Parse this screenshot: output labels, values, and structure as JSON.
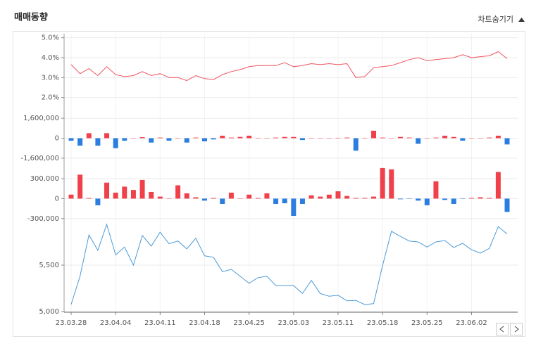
{
  "header": {
    "title": "매매동향",
    "toggle": "차트숨기기"
  },
  "chart_data": [
    {
      "type": "line",
      "color": "#f0535d",
      "grid": true,
      "ylim": [
        1.6,
        5.2
      ],
      "yticks": [
        {
          "value": 5,
          "label": "5.0%"
        },
        {
          "value": 4,
          "label": "4.0%"
        },
        {
          "value": 3,
          "label": "3.0%"
        },
        {
          "value": 2,
          "label": "2.0%"
        }
      ],
      "values": [
        3.65,
        3.2,
        3.45,
        3.1,
        3.55,
        3.15,
        3.05,
        3.1,
        3.3,
        3.1,
        3.2,
        3.0,
        3.0,
        2.85,
        3.1,
        2.95,
        2.9,
        3.15,
        3.3,
        3.4,
        3.55,
        3.6,
        3.6,
        3.6,
        3.75,
        3.55,
        3.6,
        3.7,
        3.65,
        3.7,
        3.65,
        3.7,
        3.0,
        3.05,
        3.5,
        3.55,
        3.6,
        3.75,
        3.9,
        4.0,
        3.85,
        3.9,
        3.95,
        4.0,
        4.15,
        4.0,
        4.05,
        4.1,
        4.3,
        3.95
      ]
    },
    {
      "type": "bar",
      "positive_color": "#f0414b",
      "negative_color": "#2b7de0",
      "grid": true,
      "ylim": [
        -2000000,
        2000000
      ],
      "yticks": [
        {
          "value": 1600000,
          "label": "1,600,000"
        },
        0,
        {
          "value": -1600000,
          "label": "-1,600,000"
        }
      ],
      "values": [
        -200000,
        -600000,
        400000,
        -600000,
        400000,
        -800000,
        -200000,
        20000,
        80000,
        -350000,
        50000,
        -200000,
        20000,
        -350000,
        50000,
        -250000,
        -100000,
        200000,
        50000,
        100000,
        200000,
        30000,
        20000,
        50000,
        100000,
        100000,
        -150000,
        20000,
        20000,
        10000,
        30000,
        50000,
        -1000000,
        30000,
        600000,
        50000,
        20000,
        100000,
        50000,
        -450000,
        20000,
        50000,
        200000,
        100000,
        -200000,
        20000,
        20000,
        50000,
        200000,
        -500000
      ]
    },
    {
      "type": "bar",
      "positive_color": "#f0414b",
      "negative_color": "#2b7de0",
      "grid": true,
      "ylim": [
        -450000,
        480000
      ],
      "yticks": [
        {
          "value": 300000,
          "label": "300,000"
        },
        0,
        {
          "value": -300000,
          "label": "-300,000"
        }
      ],
      "values": [
        60000,
        360000,
        10000,
        -100000,
        240000,
        90000,
        180000,
        130000,
        280000,
        100000,
        30000,
        5000,
        200000,
        80000,
        20000,
        -30000,
        10000,
        -80000,
        90000,
        5000,
        60000,
        10000,
        80000,
        -80000,
        -70000,
        -260000,
        -80000,
        50000,
        30000,
        60000,
        110000,
        40000,
        10000,
        10000,
        30000,
        460000,
        440000,
        -10000,
        -5000,
        -30000,
        -100000,
        260000,
        -20000,
        -80000,
        -5000,
        10000,
        20000,
        10000,
        400000,
        -200000
      ]
    },
    {
      "type": "line",
      "color": "#4a9ad8",
      "grid": true,
      "ylim": [
        5000,
        5970
      ],
      "yticks": [
        {
          "value": 5500,
          "label": "5,500"
        },
        {
          "value": 5000,
          "label": "5,000"
        }
      ],
      "categories": [
        "23.03.28",
        null,
        null,
        null,
        null,
        "23.04.04",
        null,
        null,
        null,
        null,
        "23.04.11",
        null,
        null,
        null,
        null,
        "23.04.18",
        null,
        null,
        null,
        null,
        "23.04.25",
        null,
        null,
        null,
        null,
        "23.05.03",
        null,
        null,
        null,
        null,
        "23.05.11",
        null,
        null,
        null,
        null,
        "23.05.18",
        null,
        null,
        null,
        null,
        "23.05.25",
        null,
        null,
        null,
        null,
        "23.06.02",
        null,
        null,
        null,
        null
      ],
      "values": [
        5076,
        5380,
        5825,
        5660,
        5940,
        5610,
        5695,
        5500,
        5820,
        5705,
        5855,
        5730,
        5760,
        5675,
        5790,
        5600,
        5585,
        5430,
        5455,
        5380,
        5305,
        5365,
        5380,
        5280,
        5280,
        5280,
        5195,
        5335,
        5195,
        5165,
        5175,
        5115,
        5120,
        5075,
        5085,
        5495,
        5865,
        5810,
        5760,
        5750,
        5695,
        5750,
        5765,
        5690,
        5735,
        5665,
        5630,
        5680,
        5915,
        5835
      ]
    }
  ]
}
